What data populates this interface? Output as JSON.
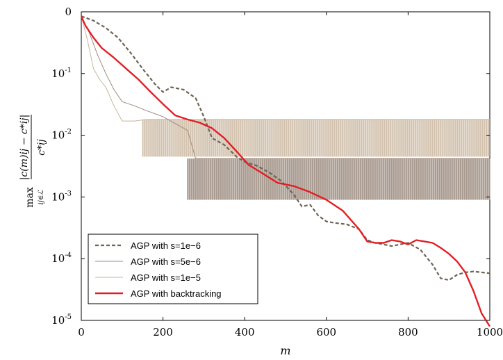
{
  "chart_data": {
    "type": "line",
    "xlabel": "m",
    "ylabel": {
      "max_text": "max",
      "subscript": "ij∈ℒ",
      "numerator": "|c(m)ij − c*ij|",
      "denominator": "c*ij"
    },
    "xlim": [
      0,
      1000
    ],
    "ylim": [
      1e-05,
      1
    ],
    "yscale": "log",
    "x_ticks": [
      "0",
      "200",
      "400",
      "600",
      "800",
      "1000"
    ],
    "y_ticks": [
      {
        "base": "0",
        "exp": ""
      },
      {
        "base": "10",
        "exp": "-1"
      },
      {
        "base": "10",
        "exp": "-2"
      },
      {
        "base": "10",
        "exp": "-3"
      },
      {
        "base": "10",
        "exp": "-4"
      },
      {
        "base": "10",
        "exp": "-5"
      }
    ],
    "legend_position": "bottom-left",
    "series": [
      {
        "name": "AGP with s=1e−6",
        "color": "#6e6354",
        "style": "dashed",
        "x": [
          0,
          30,
          60,
          90,
          120,
          150,
          180,
          200,
          220,
          250,
          280,
          300,
          320,
          350,
          380,
          400,
          430,
          460,
          490,
          520,
          540,
          560,
          580,
          600,
          620,
          650,
          680,
          700,
          720,
          740,
          760,
          780,
          800,
          830,
          860,
          880,
          900,
          920,
          940,
          960,
          980,
          1000
        ],
        "y": [
          0.85,
          0.72,
          0.55,
          0.38,
          0.22,
          0.12,
          0.068,
          0.05,
          0.06,
          0.055,
          0.04,
          0.02,
          0.009,
          0.007,
          0.0045,
          0.0037,
          0.0032,
          0.0025,
          0.0018,
          0.0011,
          0.0007,
          0.00075,
          0.0005,
          0.0004,
          0.00038,
          0.00036,
          0.0003,
          0.0002,
          0.00018,
          0.00017,
          0.00016,
          0.00017,
          0.00018,
          0.00014,
          8e-05,
          4.8e-05,
          4.5e-05,
          5.5e-05,
          6e-05,
          6.2e-05,
          6e-05,
          5.8e-05
        ]
      },
      {
        "name": "AGP with s=5e−6",
        "color": "#a0897a",
        "style": "solid",
        "x": [
          0,
          20,
          40,
          60,
          80,
          100,
          130,
          160,
          200,
          260,
          280,
          300,
          340,
          400,
          440,
          500,
          600,
          700,
          800,
          900,
          1000
        ],
        "y": [
          0.85,
          0.45,
          0.2,
          0.1,
          0.055,
          0.035,
          0.03,
          0.025,
          0.02,
          0.012,
          0.0042,
          0.0042,
          0.0042,
          0.0042,
          0.0042,
          0.0042,
          0.0042,
          0.0042,
          0.0042,
          0.0042,
          0.0042
        ]
      },
      {
        "name": "AGP with s=1e−5",
        "color": "#c8b49a",
        "style": "solid",
        "x": [
          0,
          15,
          30,
          45,
          60,
          80,
          100,
          130,
          160,
          200,
          260,
          300,
          400,
          500,
          600,
          700,
          800,
          900,
          1000
        ],
        "y": [
          0.85,
          0.35,
          0.12,
          0.08,
          0.06,
          0.03,
          0.017,
          0.017,
          0.018,
          0.018,
          0.018,
          0.018,
          0.018,
          0.018,
          0.018,
          0.018,
          0.018,
          0.018,
          0.018
        ]
      },
      {
        "name": "AGP with backtracking",
        "color": "#e31e24",
        "style": "solid",
        "x": [
          0,
          10,
          30,
          50,
          80,
          110,
          140,
          170,
          200,
          230,
          260,
          290,
          320,
          350,
          380,
          410,
          440,
          480,
          520,
          560,
          600,
          640,
          680,
          700,
          720,
          740,
          760,
          780,
          800,
          820,
          840,
          860,
          880,
          900,
          920,
          940,
          960,
          980,
          1000
        ],
        "y": [
          0.85,
          0.6,
          0.38,
          0.26,
          0.18,
          0.12,
          0.08,
          0.05,
          0.032,
          0.021,
          0.018,
          0.016,
          0.013,
          0.009,
          0.0055,
          0.0033,
          0.0025,
          0.0017,
          0.0015,
          0.0012,
          0.0009,
          0.0006,
          0.0003,
          0.00019,
          0.00018,
          0.00018,
          0.0002,
          0.00019,
          0.00017,
          0.0002,
          0.00019,
          0.00018,
          0.00015,
          0.00012,
          9e-05,
          6e-05,
          3e-05,
          1.3e-05,
          8e-06
        ]
      }
    ],
    "bands": [
      {
        "series": "AGP with s=5e−6",
        "x_start": 260,
        "x_end": 1000,
        "y_low": 0.0009,
        "y_high": 0.0042,
        "color": "#9a8a7e"
      },
      {
        "series": "AGP with s=1e−5",
        "x_start": 150,
        "x_end": 1000,
        "y_low": 0.0045,
        "y_high": 0.018,
        "color": "#cdbba5"
      }
    ]
  }
}
